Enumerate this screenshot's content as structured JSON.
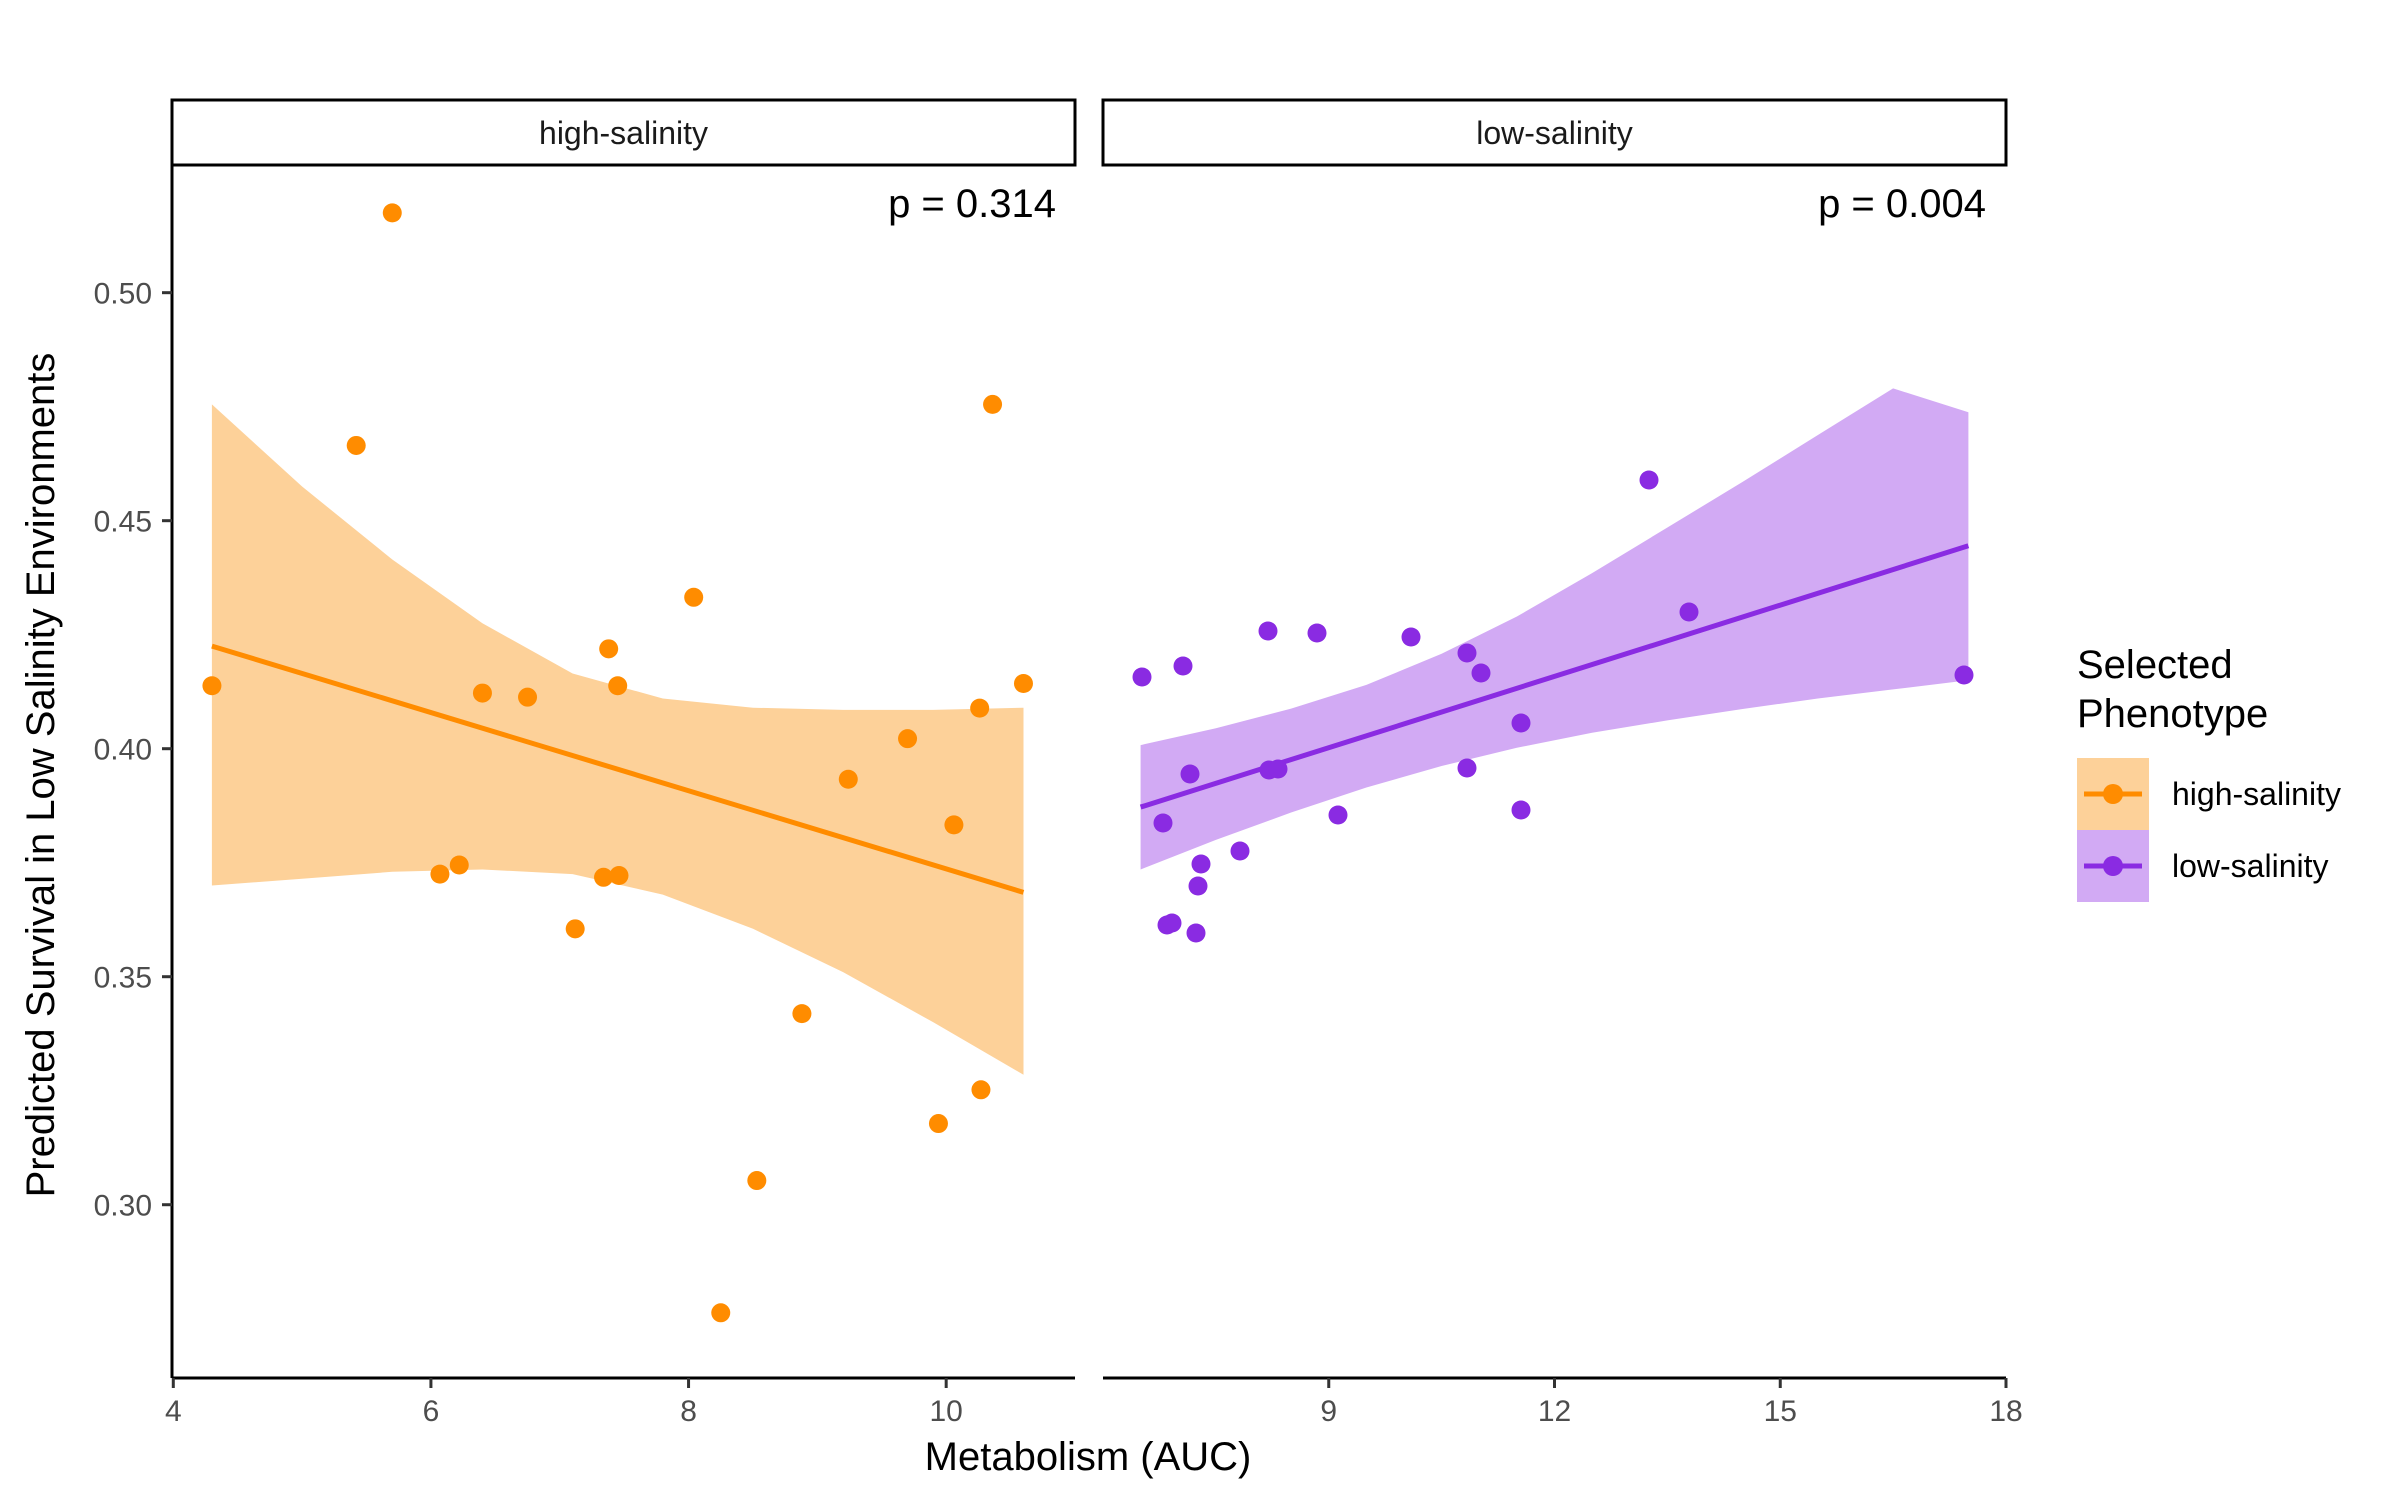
{
  "chart_data": {
    "type": "scatter",
    "xlabel": "Metabolism (AUC)",
    "ylabel": "Predicted Survival in Low Salinity Environments",
    "y_ticks": [
      "0.30",
      "0.35",
      "0.40",
      "0.45",
      "0.50"
    ],
    "y_tick_values": [
      0.3,
      0.35,
      0.4,
      0.45,
      0.5
    ],
    "ylim": [
      0.262,
      0.528
    ],
    "legend": {
      "title_line1": "Selected",
      "title_line2": "Phenotype",
      "position": "right",
      "entries": [
        {
          "label": "high-salinity",
          "color": "#ff8c00",
          "fill": "#fdd199"
        },
        {
          "label": "low-salinity",
          "color": "#8a2be2",
          "fill": "#d2aaf4"
        }
      ]
    },
    "panels": [
      {
        "strip": "high-salinity",
        "annotation": "p = 0.314",
        "color": "#ff8c00",
        "ribbon_color": "#fdd199",
        "xlim": [
          3.99,
          11.0
        ],
        "x_ticks": [
          "4",
          "6",
          "8",
          "10"
        ],
        "x_tick_values": [
          4,
          6,
          8,
          10
        ],
        "trend": {
          "x": [
            4.3,
            10.6
          ],
          "y": [
            0.4225,
            0.3685
          ]
        },
        "ribbon": [
          {
            "x": 4.3,
            "lo": 0.37,
            "hi": 0.4755
          },
          {
            "x": 5.0,
            "lo": 0.3715,
            "hi": 0.4575
          },
          {
            "x": 5.7,
            "lo": 0.373,
            "hi": 0.4415
          },
          {
            "x": 6.4,
            "lo": 0.3735,
            "hi": 0.4275
          },
          {
            "x": 7.1,
            "lo": 0.3725,
            "hi": 0.4165
          },
          {
            "x": 7.8,
            "lo": 0.368,
            "hi": 0.411
          },
          {
            "x": 8.5,
            "lo": 0.3605,
            "hi": 0.409
          },
          {
            "x": 9.2,
            "lo": 0.351,
            "hi": 0.4085
          },
          {
            "x": 9.9,
            "lo": 0.34,
            "hi": 0.4085
          },
          {
            "x": 10.6,
            "lo": 0.3285,
            "hi": 0.409
          }
        ],
        "points": [
          {
            "x": 4.3,
            "y": 0.4138
          },
          {
            "x": 5.42,
            "y": 0.4665
          },
          {
            "x": 5.7,
            "y": 0.5175
          },
          {
            "x": 6.07,
            "y": 0.3725
          },
          {
            "x": 6.22,
            "y": 0.3745
          },
          {
            "x": 6.4,
            "y": 0.4122
          },
          {
            "x": 6.75,
            "y": 0.4113
          },
          {
            "x": 7.12,
            "y": 0.3605
          },
          {
            "x": 7.34,
            "y": 0.3718
          },
          {
            "x": 7.38,
            "y": 0.4219
          },
          {
            "x": 7.45,
            "y": 0.4138
          },
          {
            "x": 7.46,
            "y": 0.3722
          },
          {
            "x": 8.04,
            "y": 0.4332
          },
          {
            "x": 8.25,
            "y": 0.2763
          },
          {
            "x": 8.53,
            "y": 0.3053
          },
          {
            "x": 8.88,
            "y": 0.3419
          },
          {
            "x": 9.24,
            "y": 0.3933
          },
          {
            "x": 9.7,
            "y": 0.4022
          },
          {
            "x": 9.94,
            "y": 0.3178
          },
          {
            "x": 10.06,
            "y": 0.3833
          },
          {
            "x": 10.26,
            "y": 0.4089
          },
          {
            "x": 10.27,
            "y": 0.3252
          },
          {
            "x": 10.36,
            "y": 0.4755
          },
          {
            "x": 10.6,
            "y": 0.4143
          }
        ]
      },
      {
        "strip": "low-salinity",
        "annotation": "p = 0.004",
        "color": "#8a2be2",
        "ribbon_color": "#d2aaf4",
        "xlim": [
          6.0,
          18.0
        ],
        "x_ticks": [
          "9",
          "12",
          "15",
          "18"
        ],
        "x_tick_values": [
          9,
          12,
          15,
          18
        ],
        "trend": {
          "x": [
            6.5,
            17.5
          ],
          "y": [
            0.3872,
            0.4445
          ]
        },
        "ribbon": [
          {
            "x": 6.5,
            "lo": 0.3735,
            "hi": 0.4008
          },
          {
            "x": 7.5,
            "lo": 0.38,
            "hi": 0.4045
          },
          {
            "x": 8.5,
            "lo": 0.386,
            "hi": 0.4088
          },
          {
            "x": 9.5,
            "lo": 0.3915,
            "hi": 0.414
          },
          {
            "x": 10.5,
            "lo": 0.3962,
            "hi": 0.4208
          },
          {
            "x": 11.5,
            "lo": 0.4002,
            "hi": 0.429
          },
          {
            "x": 12.5,
            "lo": 0.4035,
            "hi": 0.4385
          },
          {
            "x": 13.5,
            "lo": 0.4062,
            "hi": 0.4485
          },
          {
            "x": 14.5,
            "lo": 0.4087,
            "hi": 0.4585
          },
          {
            "x": 15.5,
            "lo": 0.411,
            "hi": 0.4688
          },
          {
            "x": 16.5,
            "lo": 0.413,
            "hi": 0.479
          },
          {
            "x": 17.5,
            "lo": 0.415,
            "hi": 0.4738
          }
        ]
      }
    ]
  }
}
